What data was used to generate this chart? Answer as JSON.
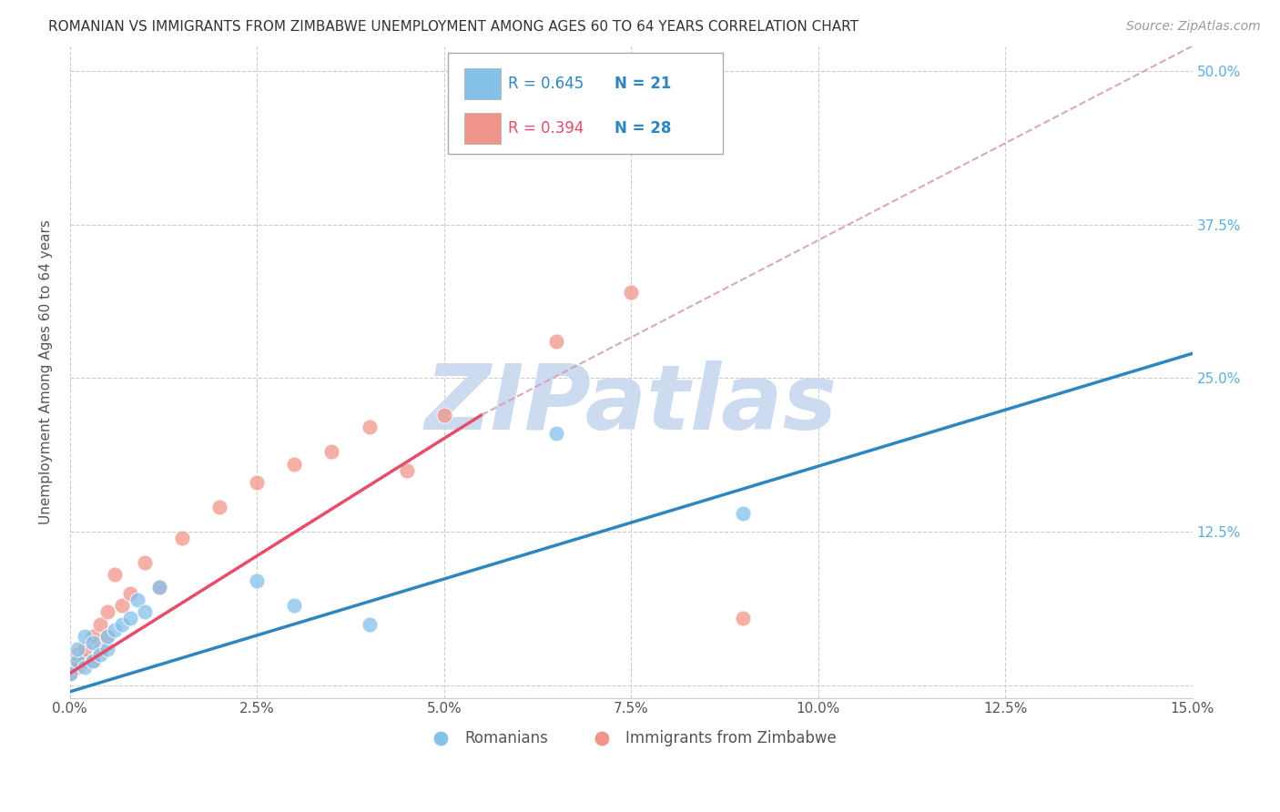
{
  "title": "ROMANIAN VS IMMIGRANTS FROM ZIMBABWE UNEMPLOYMENT AMONG AGES 60 TO 64 YEARS CORRELATION CHART",
  "source": "Source: ZipAtlas.com",
  "ylabel": "Unemployment Among Ages 60 to 64 years",
  "xlim": [
    0.0,
    0.15
  ],
  "ylim": [
    -0.01,
    0.52
  ],
  "xticks": [
    0.0,
    0.025,
    0.05,
    0.075,
    0.1,
    0.125,
    0.15
  ],
  "xticklabels": [
    "0.0%",
    "2.5%",
    "5.0%",
    "7.5%",
    "10.0%",
    "12.5%",
    "15.0%"
  ],
  "yticks": [
    0.0,
    0.125,
    0.25,
    0.375,
    0.5
  ],
  "yticklabels": [
    "",
    "12.5%",
    "25.0%",
    "37.5%",
    "50.0%"
  ],
  "grid_color": "#cccccc",
  "background_color": "#ffffff",
  "romanians_x": [
    0.0,
    0.001,
    0.001,
    0.002,
    0.002,
    0.003,
    0.003,
    0.004,
    0.005,
    0.005,
    0.006,
    0.007,
    0.008,
    0.009,
    0.01,
    0.012,
    0.025,
    0.03,
    0.04,
    0.065,
    0.09
  ],
  "romanians_y": [
    0.01,
    0.02,
    0.03,
    0.015,
    0.04,
    0.02,
    0.035,
    0.025,
    0.03,
    0.04,
    0.045,
    0.05,
    0.055,
    0.07,
    0.06,
    0.08,
    0.085,
    0.065,
    0.05,
    0.205,
    0.14
  ],
  "zimbabwe_x": [
    0.0,
    0.0,
    0.001,
    0.001,
    0.002,
    0.002,
    0.003,
    0.003,
    0.004,
    0.004,
    0.005,
    0.005,
    0.006,
    0.007,
    0.008,
    0.01,
    0.012,
    0.015,
    0.02,
    0.025,
    0.03,
    0.035,
    0.04,
    0.045,
    0.05,
    0.065,
    0.075,
    0.09
  ],
  "zimbabwe_y": [
    0.01,
    0.02,
    0.015,
    0.025,
    0.02,
    0.03,
    0.02,
    0.04,
    0.03,
    0.05,
    0.04,
    0.06,
    0.09,
    0.065,
    0.075,
    0.1,
    0.08,
    0.12,
    0.145,
    0.165,
    0.18,
    0.19,
    0.21,
    0.175,
    0.22,
    0.28,
    0.32,
    0.055
  ],
  "r_romanian": 0.645,
  "n_romanian": 21,
  "r_zimbabwe": 0.394,
  "n_zimbabwe": 28,
  "color_romanian": "#85c1e9",
  "color_zimbabwe": "#f1948a",
  "trendline_romanian_color": "#2e86c1",
  "trendline_zimbabwe_color": "#e74c6a",
  "dashed_line_color": "#d4a0b0",
  "watermark": "ZIPatlas",
  "watermark_color": "#c8d8f0",
  "trendline_rom_x0": 0.0,
  "trendline_rom_y0": -0.005,
  "trendline_rom_x1": 0.15,
  "trendline_rom_y1": 0.27,
  "trendline_zim_solid_x0": 0.0,
  "trendline_zim_solid_y0": 0.01,
  "trendline_zim_solid_x1": 0.055,
  "trendline_zim_solid_y1": 0.22,
  "trendline_zim_dash_x0": 0.055,
  "trendline_zim_dash_y0": 0.22,
  "trendline_zim_dash_x1": 0.15,
  "trendline_zim_dash_y1": 0.52
}
